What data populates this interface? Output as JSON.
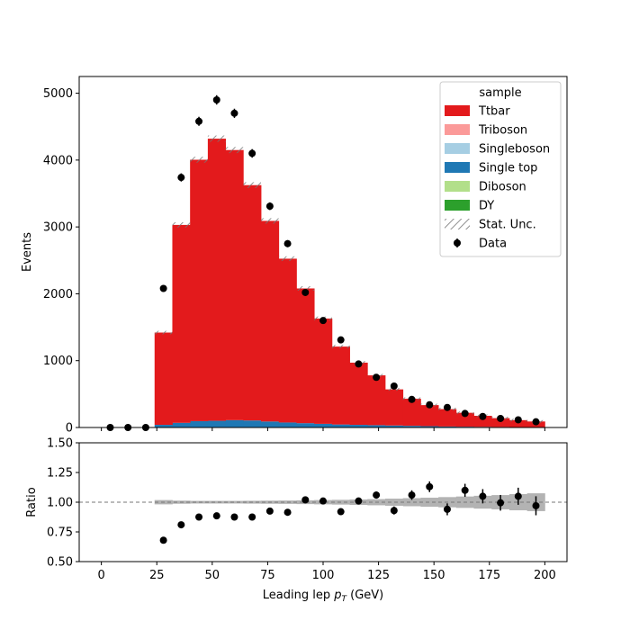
{
  "chart_data": [
    {
      "type": "bar",
      "panel": "main",
      "stacked": true,
      "ylabel": "Events",
      "xlim": [
        -10,
        210
      ],
      "ylim": [
        0,
        5250
      ],
      "yticks": [
        0,
        1000,
        2000,
        3000,
        4000,
        5000
      ],
      "bin_edges": [
        24,
        32,
        40,
        48,
        56,
        64,
        72,
        80,
        88,
        96,
        104,
        112,
        120,
        128,
        136,
        144,
        152,
        160,
        168,
        176,
        184,
        192,
        200
      ],
      "legend": {
        "title": "sample",
        "placement": "top-right",
        "entries": [
          "Ttbar",
          "Triboson",
          "Singleboson",
          "Single top",
          "Diboson",
          "DY",
          "Stat. Unc.",
          "Data"
        ]
      },
      "series": [
        {
          "name": "DY",
          "color": "#2ca02c",
          "values": [
            0,
            0,
            0,
            0,
            0,
            0,
            0,
            0,
            0,
            0,
            0,
            0,
            0,
            0,
            0,
            0,
            0,
            0,
            0,
            0,
            0,
            0
          ]
        },
        {
          "name": "Diboson",
          "color": "#b2df8a",
          "values": [
            0,
            0,
            0,
            0,
            0,
            0,
            0,
            0,
            0,
            0,
            0,
            0,
            0,
            0,
            0,
            0,
            0,
            0,
            0,
            0,
            0,
            0
          ]
        },
        {
          "name": "Single top",
          "color": "#1f78b4",
          "values": [
            40,
            70,
            95,
            100,
            110,
            105,
            90,
            75,
            65,
            55,
            45,
            40,
            35,
            30,
            25,
            20,
            15,
            12,
            10,
            8,
            6,
            5
          ]
        },
        {
          "name": "Singleboson",
          "color": "#a6cee3",
          "values": [
            0,
            0,
            0,
            0,
            0,
            0,
            0,
            0,
            0,
            0,
            0,
            0,
            0,
            0,
            0,
            0,
            0,
            0,
            0,
            0,
            0,
            0
          ]
        },
        {
          "name": "Triboson",
          "color": "#fb9a99",
          "values": [
            0,
            0,
            0,
            0,
            0,
            0,
            0,
            0,
            0,
            0,
            0,
            0,
            0,
            0,
            0,
            0,
            0,
            0,
            0,
            0,
            0,
            0
          ]
        },
        {
          "name": "Ttbar",
          "color": "#e31a1c",
          "values": [
            1380,
            2960,
            3910,
            4220,
            4040,
            3520,
            3000,
            2450,
            2015,
            1575,
            1165,
            930,
            745,
            540,
            405,
            315,
            260,
            208,
            165,
            132,
            104,
            85
          ]
        }
      ],
      "stat_unc": {
        "name": "Stat. Unc.",
        "rel": [
          0.018,
          0.013,
          0.011,
          0.011,
          0.011,
          0.012,
          0.013,
          0.014,
          0.016,
          0.018,
          0.02,
          0.023,
          0.026,
          0.03,
          0.034,
          0.038,
          0.043,
          0.048,
          0.054,
          0.06,
          0.068,
          0.075
        ]
      },
      "data": {
        "name": "Data",
        "x": [
          4,
          12,
          20,
          28,
          36,
          44,
          52,
          60,
          68,
          76,
          84,
          92,
          100,
          108,
          116,
          124,
          132,
          140,
          148,
          156,
          164,
          172,
          180,
          188,
          196
        ],
        "y": [
          0,
          0,
          0,
          2080,
          3740,
          4580,
          4900,
          4700,
          4100,
          3310,
          2750,
          2020,
          1600,
          1310,
          950,
          750,
          620,
          420,
          340,
          300,
          210,
          165,
          135,
          115,
          85
        ]
      }
    },
    {
      "type": "scatter",
      "panel": "ratio",
      "xlabel_prefix": "Leading lep ",
      "xlabel_var": "p",
      "xlabel_sub": "T",
      "xlabel_unit": " (GeV)",
      "ylabel": "Ratio",
      "xlim": [
        -10,
        210
      ],
      "ylim": [
        0.5,
        1.5
      ],
      "yticks": [
        0.5,
        0.75,
        1.0,
        1.25,
        1.5
      ],
      "ytick_labels": [
        "0.50",
        "0.75",
        "1.00",
        "1.25",
        "1.50"
      ],
      "xticks": [
        0,
        25,
        50,
        75,
        100,
        125,
        150,
        175,
        200
      ],
      "reference_line": 1.0,
      "x": [
        28,
        36,
        44,
        52,
        60,
        68,
        76,
        84,
        92,
        100,
        108,
        116,
        124,
        132,
        140,
        148,
        156,
        164,
        172,
        180,
        188,
        196
      ],
      "y": [
        0.68,
        0.81,
        0.875,
        0.885,
        0.875,
        0.875,
        0.925,
        0.915,
        1.02,
        1.01,
        0.92,
        1.01,
        1.06,
        0.93,
        1.06,
        1.13,
        0.94,
        1.1,
        1.05,
        0.995,
        1.05,
        0.97
      ],
      "yerr": [
        0.01,
        0.01,
        0.01,
        0.01,
        0.01,
        0.01,
        0.012,
        0.014,
        0.016,
        0.018,
        0.022,
        0.026,
        0.03,
        0.034,
        0.04,
        0.045,
        0.05,
        0.055,
        0.06,
        0.066,
        0.072,
        0.08
      ]
    }
  ]
}
